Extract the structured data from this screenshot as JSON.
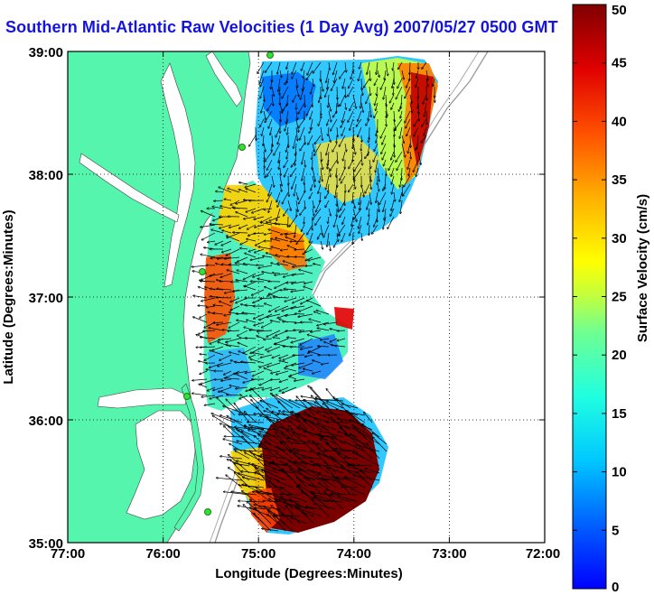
{
  "title": "Southern Mid-Atlantic Raw Velocities (1 Day Avg) 2007/05/27 0500 GMT",
  "map": {
    "xlabel": "Longitude (Degrees:Minutes)",
    "ylabel": "Latitude (Degrees:Minutes)",
    "lon_range": [
      -77,
      -72
    ],
    "lat_range": [
      35,
      39
    ],
    "x_ticks": [
      "77:00",
      "76:00",
      "75:00",
      "74:00",
      "73:00",
      "72:00"
    ],
    "y_ticks": [
      "35:00",
      "36:00",
      "37:00",
      "38:00",
      "39:00"
    ],
    "land_color": "#55f5ad",
    "water_color": "#ffffff",
    "grid": "dotted",
    "radar_sites": 5
  },
  "colorbar": {
    "label": "Surface Velocity (cm/s)",
    "ticks": [
      "0",
      "5",
      "10",
      "15",
      "20",
      "25",
      "30",
      "35",
      "40",
      "45",
      "50"
    ],
    "min": 0,
    "max": 50,
    "colormap": "jet"
  }
}
